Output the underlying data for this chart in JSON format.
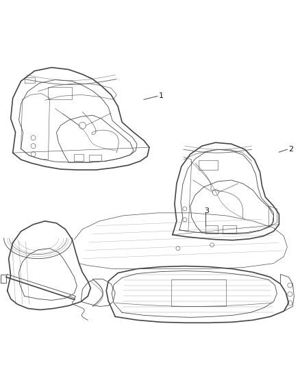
{
  "bg_color": "#ffffff",
  "line_color": "#444444",
  "line_color_light": "#888888",
  "label_color": "#111111",
  "labels": [
    "1",
    "2",
    "3"
  ],
  "figsize": [
    4.38,
    5.33
  ],
  "dpi": 100,
  "lw_outer": 1.2,
  "lw_inner": 0.6,
  "lw_detail": 0.4
}
